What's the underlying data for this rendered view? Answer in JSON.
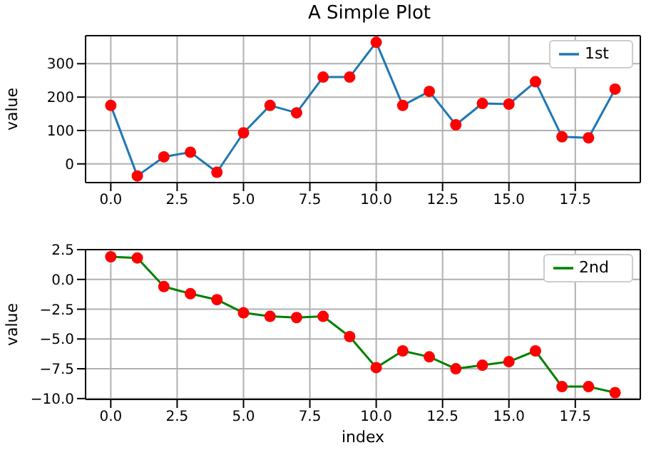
{
  "chart_data": [
    {
      "type": "line",
      "title": "A Simple Plot",
      "ylabel": "value",
      "x": [
        0,
        1,
        2,
        3,
        4,
        5,
        6,
        7,
        8,
        9,
        10,
        11,
        12,
        13,
        14,
        15,
        16,
        17,
        18,
        19
      ],
      "xlim": [
        -0.95,
        19.95
      ],
      "xticks": [
        {
          "value": 0,
          "label": "0.0"
        },
        {
          "value": 2.5,
          "label": "2.5"
        },
        {
          "value": 5,
          "label": "5.0"
        },
        {
          "value": 7.5,
          "label": "7.5"
        },
        {
          "value": 10,
          "label": "10.0"
        },
        {
          "value": 12.5,
          "label": "12.5"
        },
        {
          "value": 15,
          "label": "15.0"
        },
        {
          "value": 17.5,
          "label": "17.5"
        }
      ],
      "ylim": [
        -56,
        384
      ],
      "yticks": [
        0,
        100,
        200,
        300
      ],
      "grid": true,
      "legend": "top right",
      "marker": "circle",
      "line_style": "solid",
      "series": [
        {
          "name": "1st",
          "color": "#1f77b4",
          "colors": [
            "#ff0000",
            "#ff0000",
            "#ff0000",
            "#ff0000",
            "#ff0000",
            "#ff0000",
            "#ff0000",
            "#ff0000",
            "#ff0000",
            "#ff0000",
            "#ff0000",
            "#ff0000",
            "#ff0000",
            "#ff0000",
            "#ff0000",
            "#ff0000",
            "#ff0000",
            "#ff0000",
            "#ff0000",
            "#ff0000"
          ],
          "values": [
            175,
            -36,
            21,
            35,
            -25,
            93,
            175,
            153,
            260,
            260,
            364,
            175,
            217,
            117,
            181,
            179,
            246,
            81,
            78,
            224
          ]
        }
      ]
    },
    {
      "type": "line",
      "xlabel": "index",
      "ylabel": "value",
      "x": [
        0,
        1,
        2,
        3,
        4,
        5,
        6,
        7,
        8,
        9,
        10,
        11,
        12,
        13,
        14,
        15,
        16,
        17,
        18,
        19
      ],
      "xlim": [
        -0.95,
        19.95
      ],
      "xticks": [
        {
          "value": 0,
          "label": "0.0"
        },
        {
          "value": 2.5,
          "label": "2.5"
        },
        {
          "value": 5,
          "label": "5.0"
        },
        {
          "value": 7.5,
          "label": "7.5"
        },
        {
          "value": 10,
          "label": "10.0"
        },
        {
          "value": 12.5,
          "label": "12.5"
        },
        {
          "value": 15,
          "label": "15.0"
        },
        {
          "value": 17.5,
          "label": "17.5"
        }
      ],
      "ylim": [
        -10.07,
        2.5
      ],
      "yticks": [
        {
          "value": 2.5,
          "label": "2.5"
        },
        {
          "value": 0,
          "label": "0.0"
        },
        {
          "value": -2.5,
          "label": "−2.5"
        },
        {
          "value": -5,
          "label": "−5.0"
        },
        {
          "value": -7.5,
          "label": "−7.5"
        },
        {
          "value": -10,
          "label": "−10.0"
        }
      ],
      "grid": true,
      "legend": "top right",
      "marker": "circle",
      "line_style": "solid",
      "series": [
        {
          "name": "2nd",
          "color": "#008000",
          "colors": [
            "#ff0000",
            "#ff0000",
            "#ff0000",
            "#ff0000",
            "#ff0000",
            "#ff0000",
            "#ff0000",
            "#ff0000",
            "#ff0000",
            "#ff0000",
            "#ff0000",
            "#ff0000",
            "#ff0000",
            "#ff0000",
            "#ff0000",
            "#ff0000",
            "#ff0000",
            "#ff0000",
            "#ff0000",
            "#ff0000"
          ],
          "values": [
            1.9,
            1.8,
            -0.6,
            -1.2,
            -1.7,
            -2.8,
            -3.1,
            -3.2,
            -3.1,
            -4.8,
            -7.4,
            -6.0,
            -6.5,
            -7.5,
            -7.2,
            -6.9,
            -6.0,
            -9.0,
            -9.0,
            -9.5
          ]
        }
      ]
    }
  ]
}
